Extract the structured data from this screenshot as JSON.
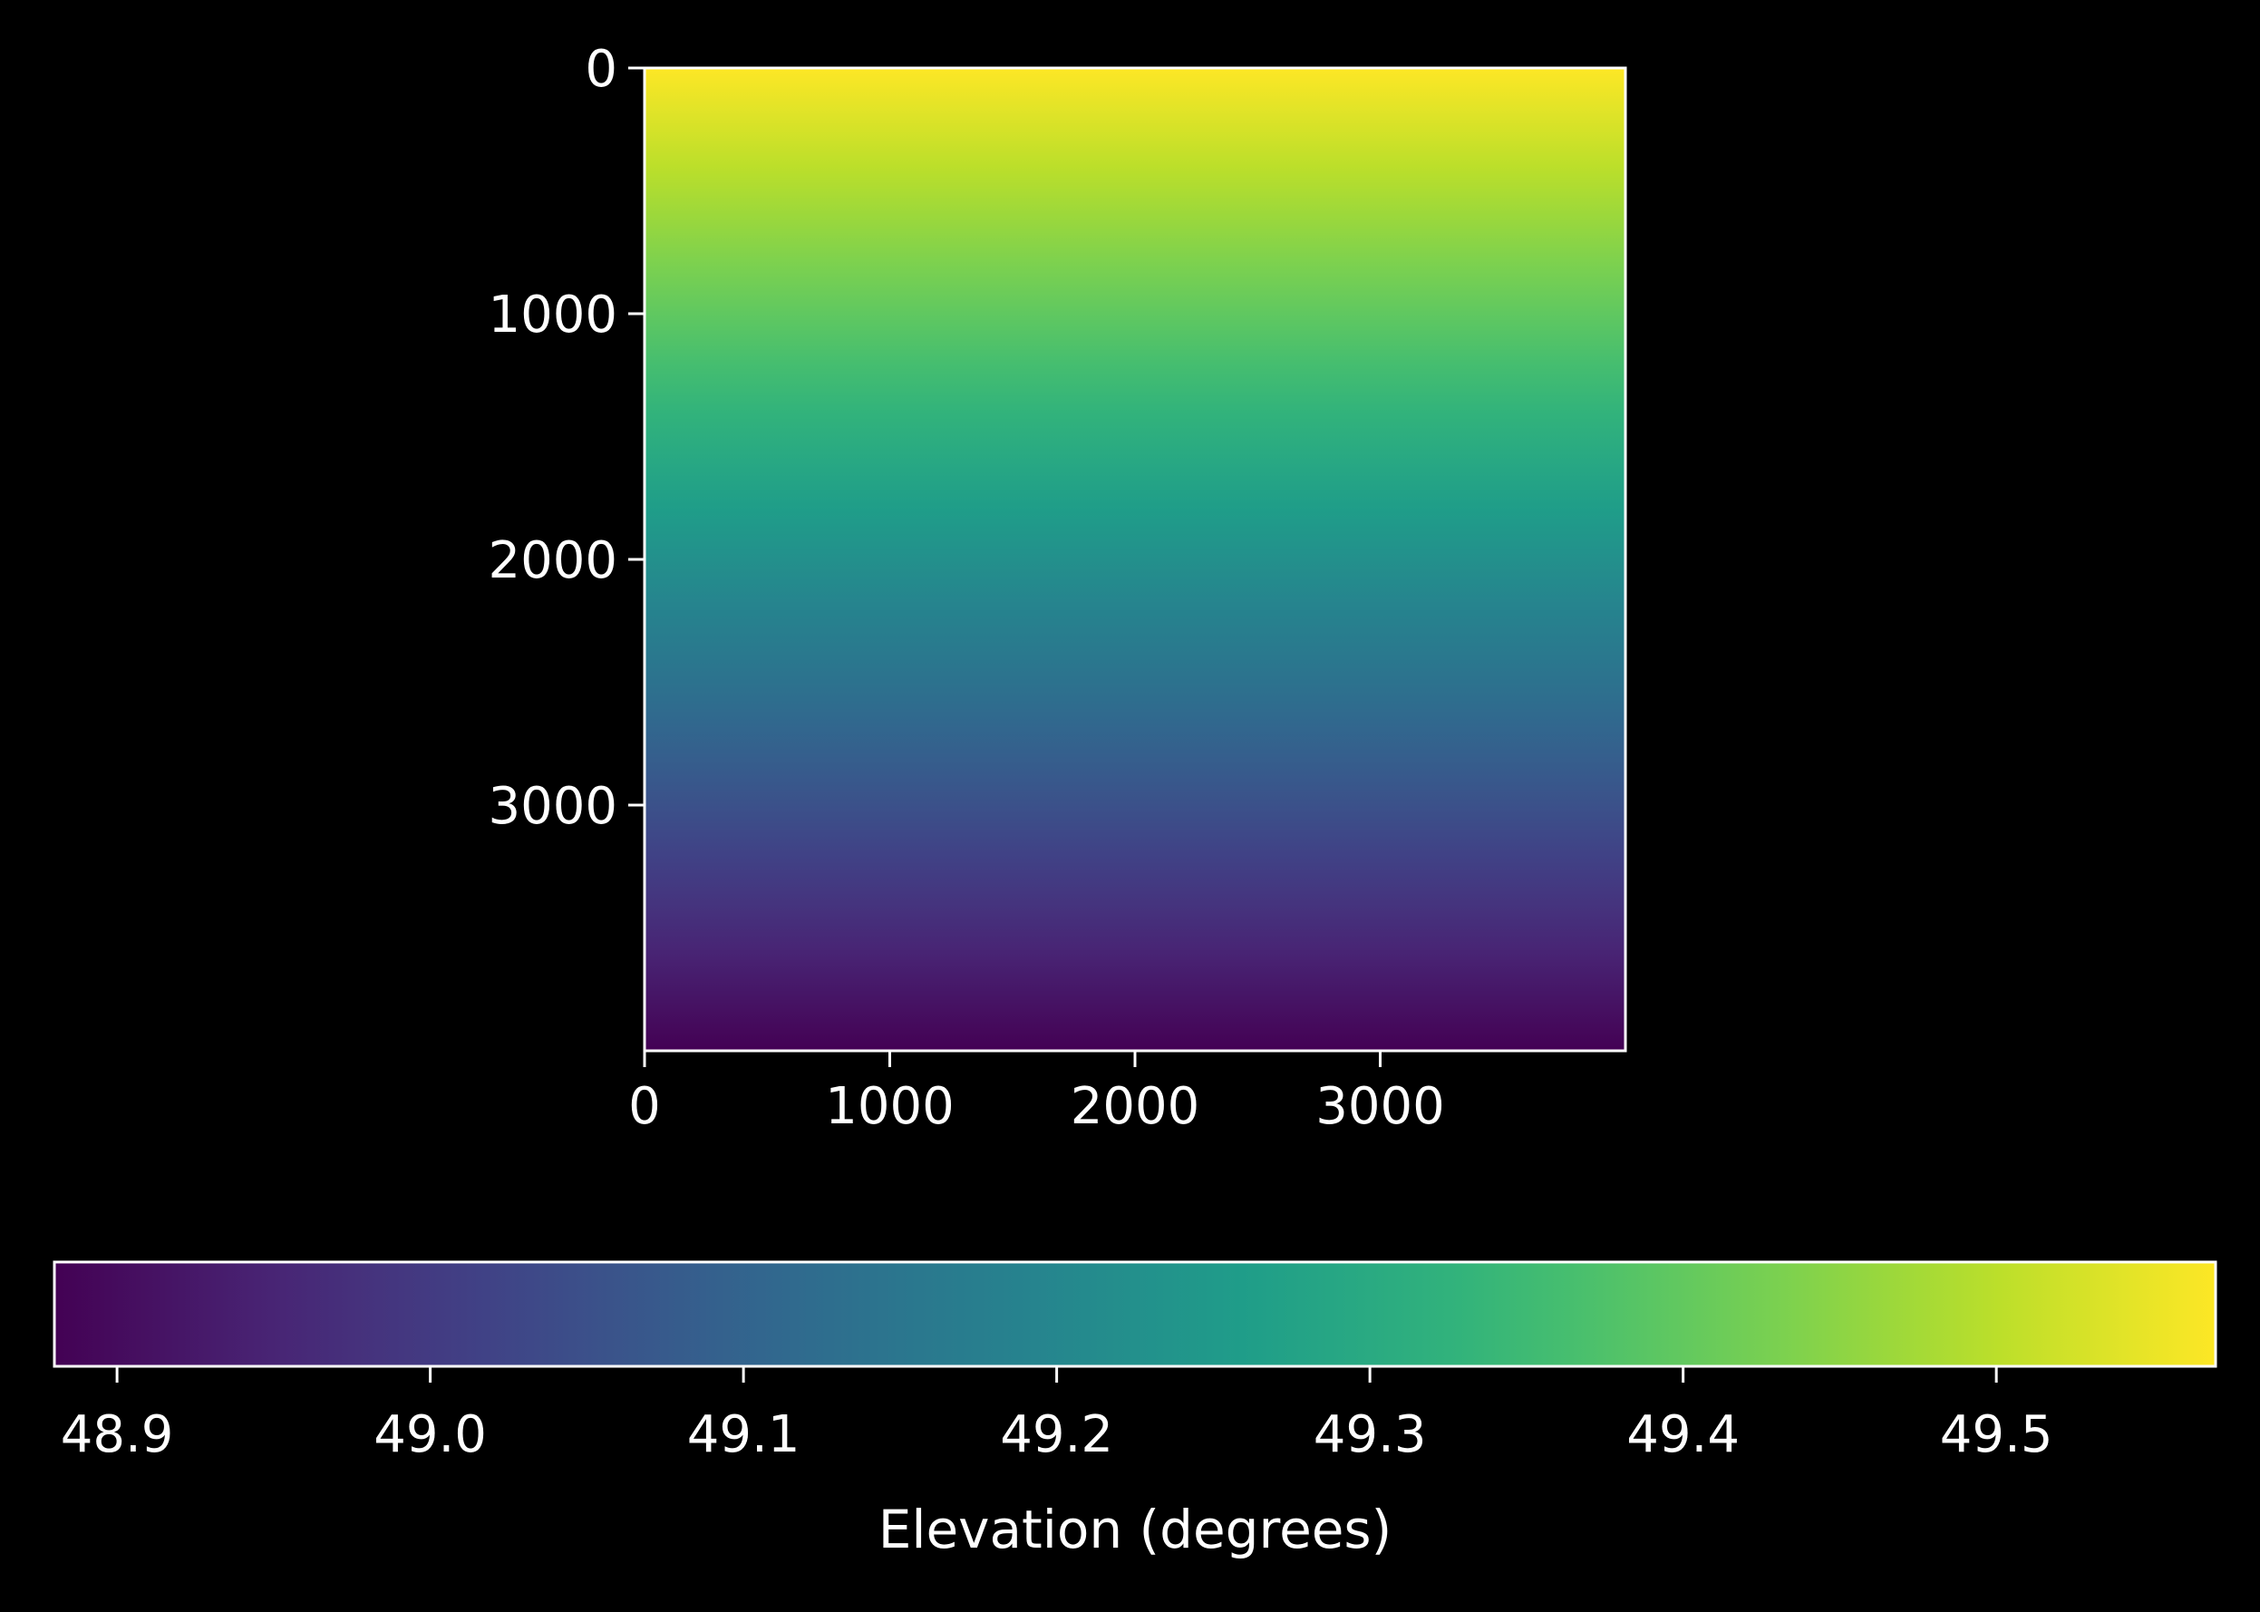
{
  "chart_data": {
    "type": "heatmap",
    "colormap": "viridis",
    "image": {
      "x_range": [
        0,
        4000
      ],
      "y_range": [
        0,
        4000
      ],
      "y_inverted": true,
      "x_ticks": [
        0,
        1000,
        2000,
        3000
      ],
      "x_tick_labels": [
        "0",
        "1000",
        "2000",
        "3000"
      ],
      "y_ticks": [
        0,
        1000,
        2000,
        3000
      ],
      "y_tick_labels": [
        "0",
        "1000",
        "2000",
        "3000"
      ],
      "value_top": 49.57,
      "value_bottom": 48.88,
      "gradient_direction": "vertical (decreasing from top to bottom)",
      "grid": false
    },
    "colorbar": {
      "orientation": "horizontal",
      "placement": "bottom",
      "range": [
        48.88,
        49.57
      ],
      "ticks": [
        48.9,
        49.0,
        49.1,
        49.2,
        49.3,
        49.4,
        49.5
      ],
      "tick_labels": [
        "48.9",
        "49.0",
        "49.1",
        "49.2",
        "49.3",
        "49.4",
        "49.5"
      ],
      "label": "Elevation (degrees)"
    }
  },
  "colors": {
    "background": "#000000",
    "foreground": "#ffffff",
    "viridis": [
      "#440154",
      "#482878",
      "#3e4989",
      "#31688e",
      "#26828e",
      "#1f9e89",
      "#35b779",
      "#6ece58",
      "#b5de2b",
      "#fde725"
    ]
  }
}
